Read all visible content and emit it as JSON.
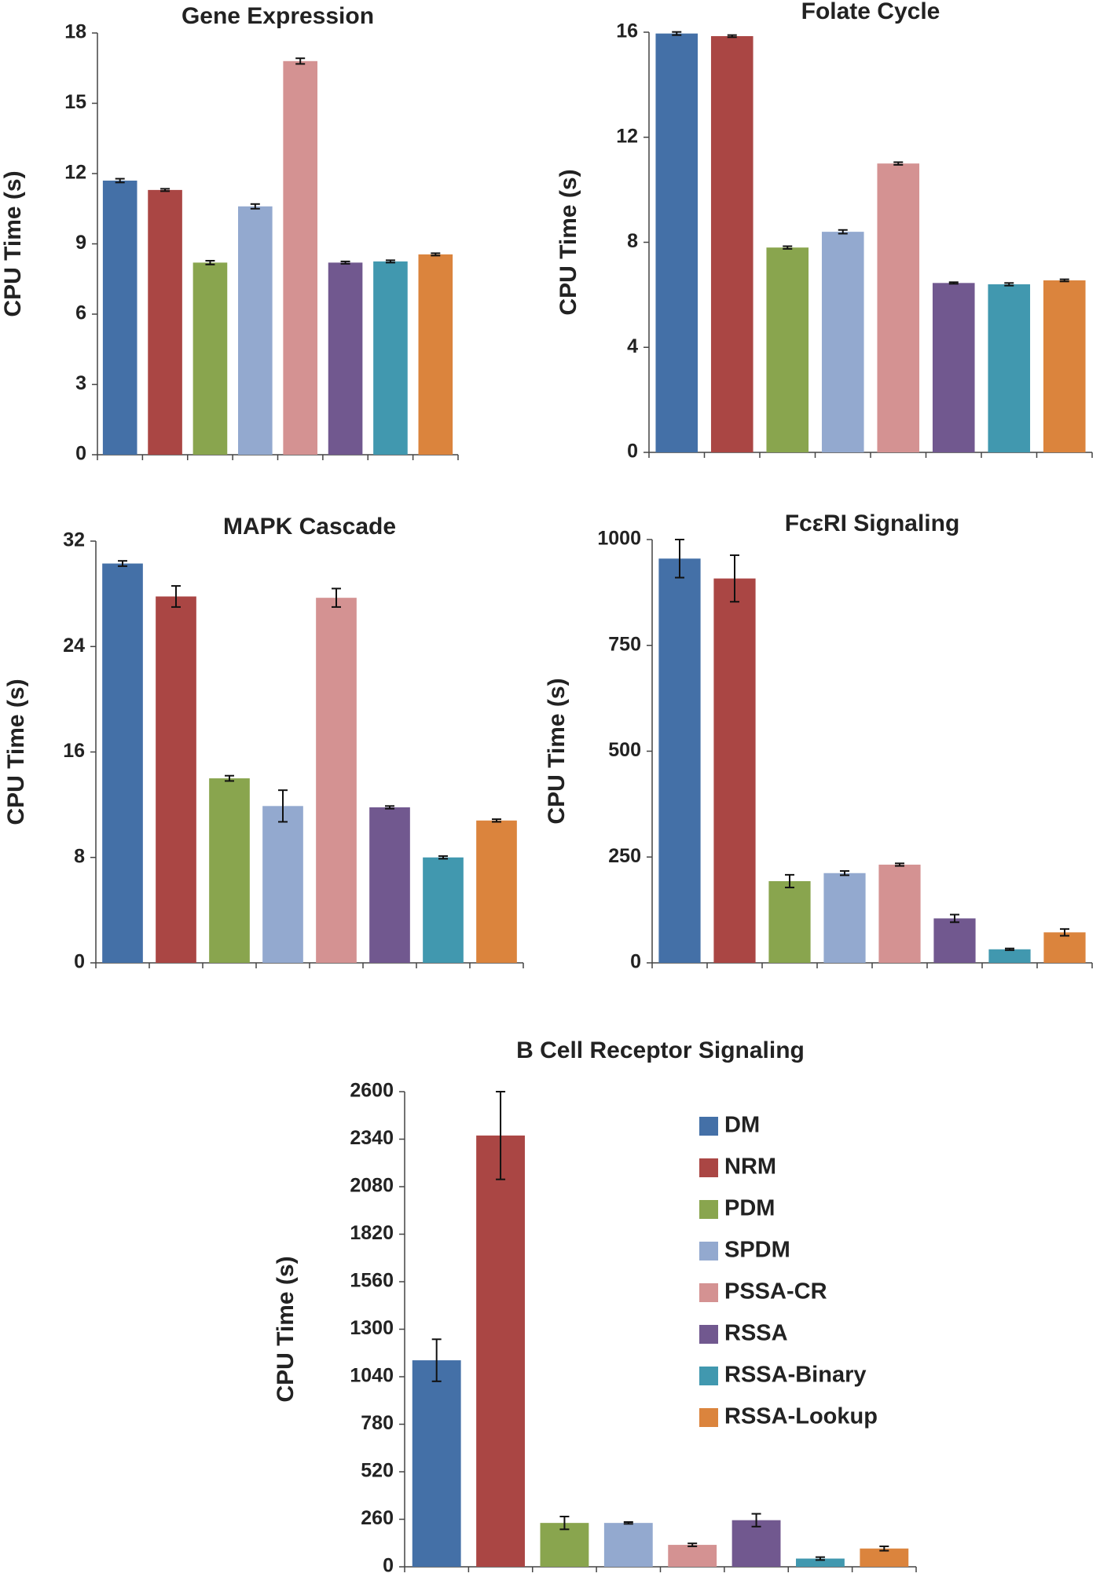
{
  "chart_data": [
    {
      "type": "bar",
      "title": "Gene Expression",
      "ylabel": "CPU Time (s)",
      "values": [
        11.7,
        11.3,
        8.2,
        10.6,
        16.8,
        8.2,
        8.25,
        8.55
      ],
      "errors": [
        0.08,
        0.05,
        0.08,
        0.1,
        0.12,
        0.05,
        0.05,
        0.05
      ],
      "colors": [
        "#4470a7",
        "#aa4644",
        "#89a54e",
        "#93a9cf",
        "#d49292",
        "#71588f",
        "#4198af",
        "#db843d"
      ],
      "ylim": [
        0,
        18
      ],
      "yticks": [
        0,
        3,
        6,
        9,
        12,
        15,
        18
      ]
    },
    {
      "type": "bar",
      "title": "Folate Cycle",
      "ylabel": "CPU Time (s)",
      "values": [
        15.95,
        15.85,
        7.8,
        8.4,
        11.0,
        6.45,
        6.4,
        6.55
      ],
      "errors": [
        0.06,
        0.04,
        0.05,
        0.07,
        0.05,
        0.03,
        0.05,
        0.04
      ],
      "colors": [
        "#4470a7",
        "#aa4644",
        "#89a54e",
        "#93a9cf",
        "#d49292",
        "#71588f",
        "#4198af",
        "#db843d"
      ],
      "ylim": [
        0,
        16
      ],
      "yticks": [
        0,
        4,
        8,
        12,
        16
      ]
    },
    {
      "type": "bar",
      "title": "MAPK Cascade",
      "ylabel": "CPU Time (s)",
      "values": [
        30.3,
        27.8,
        14.0,
        11.9,
        27.7,
        11.8,
        8.0,
        10.8
      ],
      "errors": [
        0.2,
        0.8,
        0.2,
        1.2,
        0.7,
        0.1,
        0.1,
        0.1
      ],
      "colors": [
        "#4470a7",
        "#aa4644",
        "#89a54e",
        "#93a9cf",
        "#d49292",
        "#71588f",
        "#4198af",
        "#db843d"
      ],
      "ylim": [
        0,
        32
      ],
      "yticks": [
        0,
        8,
        16,
        24,
        32
      ]
    },
    {
      "type": "bar",
      "title": "FcεRI Signaling",
      "ylabel": "CPU Time (s)",
      "values": [
        955,
        908,
        193,
        212,
        232,
        105,
        32,
        72
      ],
      "errors": [
        45,
        55,
        15,
        5,
        3,
        9,
        2,
        8
      ],
      "colors": [
        "#4470a7",
        "#aa4644",
        "#89a54e",
        "#93a9cf",
        "#d49292",
        "#71588f",
        "#4198af",
        "#db843d"
      ],
      "ylim": [
        0,
        1000
      ],
      "yticks": [
        0,
        250,
        500,
        750,
        1000
      ]
    },
    {
      "type": "bar",
      "title": "B Cell Receptor Signaling",
      "ylabel": "CPU Time (s)",
      "values": [
        1130,
        2360,
        240,
        240,
        120,
        255,
        45,
        100
      ],
      "errors": [
        115,
        240,
        35,
        5,
        8,
        35,
        8,
        12
      ],
      "colors": [
        "#4470a7",
        "#aa4644",
        "#89a54e",
        "#93a9cf",
        "#d49292",
        "#71588f",
        "#4198af",
        "#db843d"
      ],
      "ylim": [
        0,
        2600
      ],
      "yticks": [
        0,
        260,
        520,
        780,
        1040,
        1300,
        1560,
        1820,
        2080,
        2340,
        2600
      ],
      "legend": [
        "DM",
        "NRM",
        "PDM",
        "SPDM",
        "PSSA-CR",
        "RSSA",
        "RSSA-Binary",
        "RSSA-Lookup"
      ]
    }
  ]
}
